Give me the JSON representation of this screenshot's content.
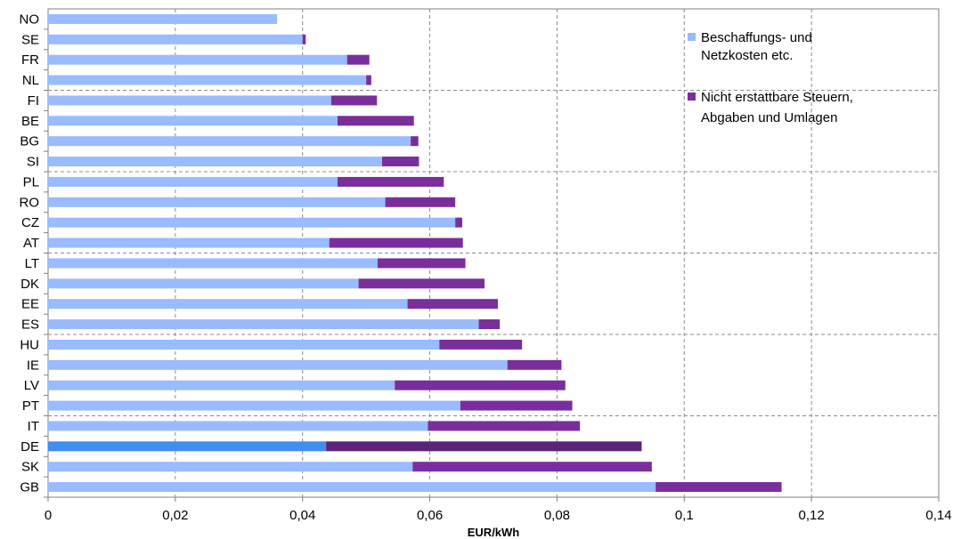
{
  "chart_data": {
    "type": "bar",
    "orientation": "horizontal",
    "stacked": true,
    "categories": [
      "NO",
      "SE",
      "FR",
      "NL",
      "FI",
      "BE",
      "BG",
      "SI",
      "PL",
      "RO",
      "CZ",
      "AT",
      "LT",
      "DK",
      "EE",
      "ES",
      "HU",
      "IE",
      "LV",
      "PT",
      "IT",
      "DE",
      "SK",
      "GB"
    ],
    "series": [
      {
        "name": "Beschaffungs- und Netzkosten etc.",
        "color": "#99bbff",
        "values": [
          0.036,
          0.04,
          0.047,
          0.05,
          0.0445,
          0.0455,
          0.057,
          0.0525,
          0.0455,
          0.053,
          0.064,
          0.0442,
          0.0518,
          0.0488,
          0.0565,
          0.0677,
          0.0615,
          0.0722,
          0.0545,
          0.0648,
          0.0597,
          0.0437,
          0.0573,
          0.0955
        ]
      },
      {
        "name": "Nicht erstattbare Steuern, Abgaben und Umlagen",
        "color": "#7a2e9c",
        "values": [
          0.0,
          0.0005,
          0.0035,
          0.0008,
          0.0072,
          0.012,
          0.0012,
          0.0058,
          0.0167,
          0.011,
          0.0011,
          0.021,
          0.0138,
          0.0198,
          0.0142,
          0.0033,
          0.013,
          0.0085,
          0.0268,
          0.0176,
          0.0239,
          0.0496,
          0.0376,
          0.0198
        ]
      }
    ],
    "highlight": {
      "category": "DE",
      "colors": [
        "#3f8ef0",
        "#5a2378"
      ]
    },
    "xlabel": "EUR/kWh",
    "xlim": [
      0,
      0.14
    ],
    "xticks": [
      "0",
      "0,02",
      "0,04",
      "0,06",
      "0,08",
      "0,1",
      "0,12",
      "0,14"
    ],
    "xtick_values": [
      0,
      0.02,
      0.04,
      0.06,
      0.08,
      0.1,
      0.12,
      0.14
    ],
    "grid": "vertical dashed",
    "group_separators_after": [
      "NL",
      "SI",
      "AT",
      "ES",
      "PT"
    ],
    "legend_position": "top-right",
    "legend_lines": [
      [
        "Beschaffungs- und",
        "Netzkosten etc."
      ],
      [
        "Nicht erstattbare Steuern,",
        "Abgaben und Umlagen"
      ]
    ]
  }
}
